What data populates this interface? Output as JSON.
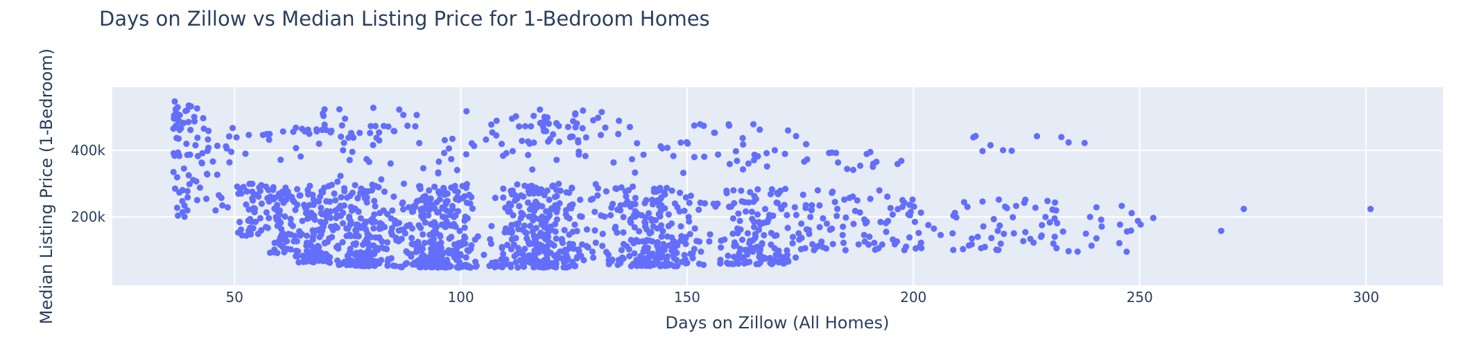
{
  "chart_data": {
    "type": "scatter",
    "mode": "markers",
    "title": "Days on Zillow vs Median Listing Price for 1-Bedroom Homes",
    "xlabel": "Days on Zillow (All Homes)",
    "ylabel": "Median Listing Price (1-Bedroom)",
    "x_range": [
      23,
      317
    ],
    "y_range_thousands": [
      -6,
      590
    ],
    "x_ticks": [
      {
        "value": 50,
        "label": "50"
      },
      {
        "value": 100,
        "label": "100"
      },
      {
        "value": 150,
        "label": "150"
      },
      {
        "value": 200,
        "label": "200"
      },
      {
        "value": 250,
        "label": "250"
      },
      {
        "value": 300,
        "label": "300"
      }
    ],
    "y_ticks": [
      {
        "value": 200,
        "label": "200k"
      },
      {
        "value": 400,
        "label": "400k"
      }
    ],
    "grid": true,
    "legend": "none",
    "plot_bgcolor": "#e5ecf6",
    "paper_bgcolor": "#ffffff",
    "grid_color": "#ffffff",
    "font_color": "#2a3f5f",
    "marker": {
      "color": "#636efa",
      "radius": 4.6,
      "opacity": 1
    },
    "seed": 42,
    "n_points_total": 1862,
    "x_units": "days",
    "y_units": "USD thousands",
    "data_summary": "Dense cloud of listings between ~37 and ~250 days; prices mostly 50k-300k with a dense core 60k-200k around 70-160 days; a steep left arm at 37-48 days reaching ~545k; an upper scattered band 330k-530k between 45 and 250 days; isolated outliers near 268-301 days around 160k-225k.",
    "outlier_points": [
      [
        253,
        197
      ],
      [
        268,
        158
      ],
      [
        273,
        224
      ],
      [
        301,
        224
      ]
    ],
    "clusters": [
      {
        "name": "left-col-high",
        "n": 42,
        "x": [
          36.5,
          45
        ],
        "xd": "pow",
        "xe": 1.6,
        "y": [
          380,
          548
        ],
        "yd": "pow",
        "ye": 0.9
      },
      {
        "name": "left-col-low",
        "n": 36,
        "x": [
          36.5,
          49
        ],
        "xd": "pow",
        "xe": 1.5,
        "y": [
          195,
          385
        ],
        "yd": "pow",
        "ye": 1.0
      },
      {
        "name": "left-streak-460k",
        "n": 30,
        "x": [
          47,
          96
        ],
        "xd": "tri",
        "xe": 1.0,
        "y": [
          448,
          478
        ],
        "yd": "pow",
        "ye": 1.0
      },
      {
        "name": "left-upper-scatter",
        "n": 26,
        "x": [
          45,
          100
        ],
        "xd": "pow",
        "xe": 1.0,
        "y": [
          390,
          450
        ],
        "yd": "pow",
        "ye": 1.0
      },
      {
        "name": "left-top-scatter",
        "n": 10,
        "x": [
          55,
          102
        ],
        "xd": "pow",
        "xe": 1.0,
        "y": [
          478,
          530
        ],
        "yd": "pow",
        "ye": 1.0
      },
      {
        "name": "left-mid-scatter",
        "n": 10,
        "x": [
          52,
          96
        ],
        "xd": "pow",
        "xe": 1.0,
        "y": [
          300,
          385
        ],
        "yd": "pow",
        "ye": 1.0
      },
      {
        "name": "mid-upper-cloud",
        "n": 55,
        "x": [
          100,
          142
        ],
        "xd": "tri",
        "xe": 1.0,
        "y": [
          420,
          525
        ],
        "yd": "pow",
        "ye": 1.0
      },
      {
        "name": "mid-upper-scatter",
        "n": 48,
        "x": [
          95,
          178
        ],
        "xd": "pow",
        "xe": 1.0,
        "y": [
          328,
          422
        ],
        "yd": "pow",
        "ye": 1.0
      },
      {
        "name": "mid-upper-right",
        "n": 14,
        "x": [
          142,
          176
        ],
        "xd": "pow",
        "xe": 1.0,
        "y": [
          415,
          480
        ],
        "yd": "pow",
        "ye": 1.0
      },
      {
        "name": "right-upper-a",
        "n": 15,
        "x": [
          176,
          200
        ],
        "xd": "pow",
        "xe": 1.0,
        "y": [
          330,
          396
        ],
        "yd": "pow",
        "ye": 1.0
      },
      {
        "name": "right-upper-b",
        "n": 10,
        "x": [
          208,
          250
        ],
        "xd": "pow",
        "xe": 1.0,
        "y": [
          398,
          462
        ],
        "yd": "pow",
        "ye": 1.0
      },
      {
        "name": "core-a",
        "n": 45,
        "x": [
          50,
          58
        ],
        "xd": "tri",
        "xe": 1.0,
        "y": [
          140,
          300
        ],
        "yd": "pow",
        "ye": 1.2
      },
      {
        "name": "core-b",
        "n": 70,
        "x": [
          56,
          65
        ],
        "xd": "tri",
        "xe": 1.0,
        "y": [
          90,
          290
        ],
        "yd": "pow",
        "ye": 1.4
      },
      {
        "name": "core-c",
        "n": 115,
        "x": [
          63,
          73
        ],
        "xd": "tri",
        "xe": 1.0,
        "y": [
          62,
          295
        ],
        "yd": "pow",
        "ye": 1.5
      },
      {
        "name": "core-d",
        "n": 200,
        "x": [
          71,
          86
        ],
        "xd": "tri",
        "xe": 1.0,
        "y": [
          52,
          300
        ],
        "yd": "pow",
        "ye": 1.7
      },
      {
        "name": "core-e",
        "n": 285,
        "x": [
          84,
          106
        ],
        "xd": "tri",
        "xe": 1.0,
        "y": [
          48,
          300
        ],
        "yd": "pow",
        "ye": 1.75
      },
      {
        "name": "core-f",
        "n": 300,
        "x": [
          104,
          131
        ],
        "xd": "tri",
        "xe": 1.0,
        "y": [
          48,
          300
        ],
        "yd": "pow",
        "ye": 1.75
      },
      {
        "name": "core-g",
        "n": 235,
        "x": [
          129,
          156
        ],
        "xd": "tri",
        "xe": 1.0,
        "y": [
          52,
          295
        ],
        "yd": "pow",
        "ye": 1.7
      },
      {
        "name": "core-h",
        "n": 145,
        "x": [
          154,
          176
        ],
        "xd": "tri",
        "xe": 1.0,
        "y": [
          58,
          285
        ],
        "yd": "pow",
        "ye": 1.55
      },
      {
        "name": "right-band-a",
        "n": 90,
        "x": [
          174,
          202
        ],
        "xd": "pow",
        "xe": 1.0,
        "y": [
          100,
          285
        ],
        "yd": "pow",
        "ye": 1.35
      },
      {
        "name": "right-band-b",
        "n": 55,
        "x": [
          200,
          232
        ],
        "xd": "pow",
        "xe": 1.0,
        "y": [
          100,
          265
        ],
        "yd": "pow",
        "ye": 1.25
      },
      {
        "name": "right-band-c",
        "n": 22,
        "x": [
          230,
          253
        ],
        "xd": "pow",
        "xe": 1.0,
        "y": [
          95,
          235
        ],
        "yd": "pow",
        "ye": 1.1
      }
    ]
  }
}
